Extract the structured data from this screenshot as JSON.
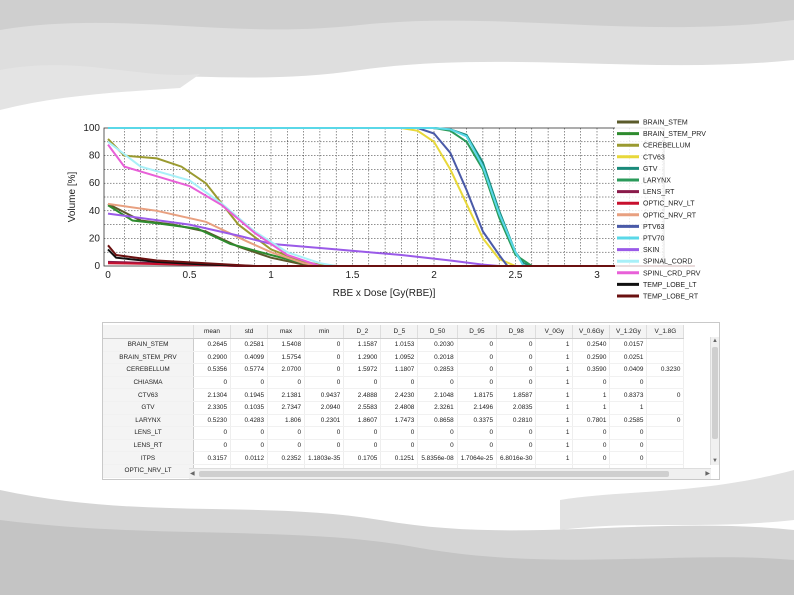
{
  "chart_data": {
    "type": "line",
    "xlabel": "RBE x Dose [Gy(RBE)]",
    "ylabel": "Volume [%]",
    "xlim": [
      0,
      3
    ],
    "ylim": [
      0,
      100
    ],
    "x_ticks": [
      "0",
      "0.5",
      "1",
      "1.5",
      "2",
      "2.5",
      "3"
    ],
    "y_ticks": [
      "0",
      "20",
      "40",
      "60",
      "80",
      "100"
    ],
    "grid": true,
    "legend_position": "right",
    "series": [
      {
        "name": "BRAIN_STEM",
        "color": "#5a5a2a",
        "points": [
          [
            0,
            45
          ],
          [
            0.2,
            33
          ],
          [
            0.4,
            30
          ],
          [
            0.6,
            25
          ],
          [
            0.8,
            14
          ],
          [
            1.0,
            6
          ],
          [
            1.2,
            1
          ],
          [
            1.3,
            0
          ]
        ]
      },
      {
        "name": "BRAIN_STEM_PRV",
        "color": "#2e8b2e",
        "points": [
          [
            0,
            44
          ],
          [
            0.15,
            33
          ],
          [
            0.3,
            31
          ],
          [
            0.55,
            27
          ],
          [
            0.75,
            16
          ],
          [
            1.0,
            8
          ],
          [
            1.2,
            2
          ],
          [
            1.4,
            0
          ]
        ]
      },
      {
        "name": "CEREBELLUM",
        "color": "#9a9a30",
        "points": [
          [
            0,
            92
          ],
          [
            0.1,
            80
          ],
          [
            0.3,
            78
          ],
          [
            0.45,
            72
          ],
          [
            0.6,
            60
          ],
          [
            0.8,
            30
          ],
          [
            1.0,
            12
          ],
          [
            1.2,
            3
          ],
          [
            1.35,
            0
          ]
        ]
      },
      {
        "name": "CTV63",
        "color": "#e8d83a",
        "points": [
          [
            0,
            100
          ],
          [
            1.8,
            100
          ],
          [
            1.9,
            98
          ],
          [
            2.0,
            90
          ],
          [
            2.1,
            70
          ],
          [
            2.2,
            45
          ],
          [
            2.3,
            20
          ],
          [
            2.4,
            5
          ],
          [
            2.5,
            0
          ]
        ]
      },
      {
        "name": "GTV",
        "color": "#1a8a7a",
        "points": [
          [
            0,
            100
          ],
          [
            2.0,
            100
          ],
          [
            2.1,
            99
          ],
          [
            2.2,
            95
          ],
          [
            2.3,
            75
          ],
          [
            2.4,
            40
          ],
          [
            2.5,
            10
          ],
          [
            2.55,
            2
          ],
          [
            2.6,
            0
          ]
        ]
      },
      {
        "name": "LARYNX",
        "color": "#2a9a5a",
        "points": [
          [
            0,
            100
          ],
          [
            2.0,
            100
          ],
          [
            2.1,
            98
          ],
          [
            2.2,
            90
          ],
          [
            2.3,
            70
          ],
          [
            2.4,
            35
          ],
          [
            2.5,
            8
          ],
          [
            2.6,
            0
          ]
        ]
      },
      {
        "name": "LENS_RT",
        "color": "#8a1a4a",
        "points": [
          [
            0,
            3
          ],
          [
            0.3,
            2
          ],
          [
            0.6,
            1
          ],
          [
            0.8,
            0
          ]
        ]
      },
      {
        "name": "OPTIC_NRV_LT",
        "color": "#c8102e",
        "points": [
          [
            0,
            2
          ],
          [
            0.5,
            1
          ],
          [
            0.8,
            0
          ]
        ]
      },
      {
        "name": "OPTIC_NRV_RT",
        "color": "#e8a080",
        "points": [
          [
            0,
            45
          ],
          [
            0.3,
            40
          ],
          [
            0.6,
            32
          ],
          [
            0.85,
            18
          ],
          [
            1.0,
            10
          ],
          [
            1.2,
            2
          ],
          [
            1.3,
            0
          ]
        ]
      },
      {
        "name": "PTV63",
        "color": "#4a5aa8",
        "points": [
          [
            0,
            100
          ],
          [
            1.9,
            100
          ],
          [
            2.0,
            96
          ],
          [
            2.1,
            82
          ],
          [
            2.2,
            55
          ],
          [
            2.3,
            25
          ],
          [
            2.4,
            8
          ],
          [
            2.45,
            0
          ]
        ]
      },
      {
        "name": "PTV70",
        "color": "#5ad8e8",
        "points": [
          [
            0,
            100
          ],
          [
            2.0,
            100
          ],
          [
            2.1,
            99
          ],
          [
            2.2,
            94
          ],
          [
            2.3,
            72
          ],
          [
            2.4,
            38
          ],
          [
            2.5,
            10
          ],
          [
            2.55,
            0
          ]
        ]
      },
      {
        "name": "SKIN",
        "color": "#9a5ae8",
        "points": [
          [
            0,
            38
          ],
          [
            0.5,
            30
          ],
          [
            0.8,
            22
          ],
          [
            1.0,
            16
          ],
          [
            1.4,
            12
          ],
          [
            1.8,
            8
          ],
          [
            2.1,
            4
          ],
          [
            2.3,
            1
          ],
          [
            2.4,
            0
          ]
        ]
      },
      {
        "name": "SPINAL_CORD",
        "color": "#a8f0f8",
        "points": [
          [
            0,
            90
          ],
          [
            0.2,
            72
          ],
          [
            0.5,
            62
          ],
          [
            0.7,
            45
          ],
          [
            0.9,
            25
          ],
          [
            1.1,
            10
          ],
          [
            1.3,
            2
          ],
          [
            1.4,
            0
          ]
        ]
      },
      {
        "name": "SPINL_CRD_PRV",
        "color": "#e860d8",
        "points": [
          [
            0,
            88
          ],
          [
            0.1,
            72
          ],
          [
            0.3,
            65
          ],
          [
            0.5,
            58
          ],
          [
            0.7,
            44
          ],
          [
            0.9,
            24
          ],
          [
            1.1,
            8
          ],
          [
            1.3,
            0
          ]
        ]
      },
      {
        "name": "TEMP_LOBE_LT",
        "color": "#111111",
        "points": [
          [
            0,
            12
          ],
          [
            0.05,
            6
          ],
          [
            0.3,
            3
          ],
          [
            0.6,
            1
          ],
          [
            0.9,
            0
          ]
        ]
      },
      {
        "name": "TEMP_LOBE_RT",
        "color": "#6a1010",
        "points": [
          [
            0,
            15
          ],
          [
            0.05,
            8
          ],
          [
            0.3,
            4
          ],
          [
            0.6,
            2
          ],
          [
            0.9,
            0
          ]
        ]
      }
    ]
  },
  "table": {
    "columns": [
      "mean",
      "std",
      "max",
      "min",
      "D_2",
      "D_5",
      "D_50",
      "D_95",
      "D_98",
      "V_0Gy",
      "V_0.6Gy",
      "V_1.2Gy",
      "V_1.8G"
    ],
    "rows": [
      {
        "name": "BRAIN_STEM",
        "cells": [
          "0.2645",
          "0.2581",
          "1.5408",
          "0",
          "1.1587",
          "1.0153",
          "0.2030",
          "0",
          "0",
          "1",
          "0.2540",
          "0.0157",
          ""
        ]
      },
      {
        "name": "BRAIN_STEM_PRV",
        "cells": [
          "0.2900",
          "0.4099",
          "1.5754",
          "0",
          "1.2900",
          "1.0952",
          "0.2018",
          "0",
          "0",
          "1",
          "0.2590",
          "0.0251",
          ""
        ]
      },
      {
        "name": "CEREBELLUM",
        "cells": [
          "0.5356",
          "0.5774",
          "2.0700",
          "0",
          "1.5972",
          "1.1807",
          "0.2853",
          "0",
          "0",
          "1",
          "0.3590",
          "0.0409",
          "0.3230"
        ]
      },
      {
        "name": "CHIASMA",
        "cells": [
          "0",
          "0",
          "0",
          "0",
          "0",
          "0",
          "0",
          "0",
          "0",
          "1",
          "0",
          "0",
          ""
        ]
      },
      {
        "name": "CTV63",
        "cells": [
          "2.1304",
          "0.1945",
          "2.1381",
          "0.9437",
          "2.4888",
          "2.4230",
          "2.1048",
          "1.8175",
          "1.8587",
          "1",
          "1",
          "0.8373",
          "0"
        ]
      },
      {
        "name": "GTV",
        "cells": [
          "2.3305",
          "0.1035",
          "2.7347",
          "2.0940",
          "2.5583",
          "2.4808",
          "2.3261",
          "2.1496",
          "2.0835",
          "1",
          "1",
          "1",
          ""
        ]
      },
      {
        "name": "LARYNX",
        "cells": [
          "0.5230",
          "0.4283",
          "1.806",
          "0.2301",
          "1.8607",
          "1.7473",
          "0.8658",
          "0.3375",
          "0.2810",
          "1",
          "0.7801",
          "0.2585",
          "0"
        ]
      },
      {
        "name": "LENS_LT",
        "cells": [
          "0",
          "0",
          "0",
          "0",
          "0",
          "0",
          "0",
          "0",
          "0",
          "1",
          "0",
          "0",
          ""
        ]
      },
      {
        "name": "LENS_RT",
        "cells": [
          "0",
          "0",
          "0",
          "0",
          "0",
          "0",
          "0",
          "0",
          "0",
          "1",
          "0",
          "0",
          ""
        ]
      },
      {
        "name": "ITPS",
        "cells": [
          "0.3157",
          "0.0112",
          "0.2352",
          "1.1803e-35",
          "0.1705",
          "0.1251",
          "5.8356e-08",
          "1.7064e-25",
          "6.8016e-30",
          "1",
          "0",
          "0",
          ""
        ]
      },
      {
        "name": "OPTIC_NRV_LT",
        "cells": [
          "",
          "",
          "",
          "",
          "",
          "",
          "",
          "",
          "",
          "",
          "",
          "",
          ""
        ]
      }
    ]
  }
}
